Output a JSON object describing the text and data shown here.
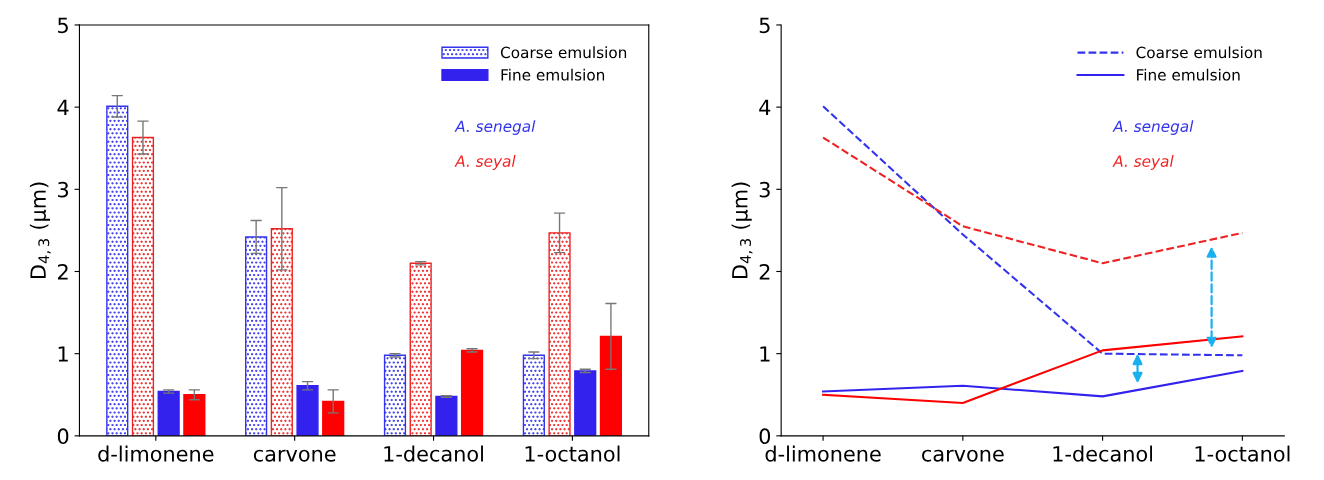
{
  "chart_data": [
    {
      "type": "bar",
      "categories": [
        "d-limonene",
        "carvone",
        "1-decanol",
        "1-octanol"
      ],
      "ylabel": "D$_{4,3}$ (µm)",
      "ylim": [
        0,
        5
      ],
      "yticks": [
        0,
        1,
        2,
        3,
        4,
        5
      ],
      "grid": false,
      "legend": "top right",
      "annotations": [
        "A. senegal",
        "A. seyal"
      ],
      "series": [
        {
          "name": "Coarse emulsion",
          "color": "#3333ee",
          "line_style": "dotted",
          "values": [
            4.01,
            2.42,
            0.98,
            0.98
          ],
          "errors": [
            0.13,
            0.2,
            0.02,
            0.04
          ]
        },
        {
          "color": "#ee2222",
          "line_style": "dotted",
          "values": [
            3.63,
            2.52,
            2.1,
            2.47
          ],
          "errors": [
            0.2,
            0.5,
            0.02,
            0.24
          ]
        },
        {
          "name": "Fine emulsion",
          "color": "#3322ee",
          "values": [
            0.54,
            0.61,
            0.48,
            0.79
          ],
          "errors": [
            0.02,
            0.05,
            0.01,
            0.02
          ]
        },
        {
          "color": "#ff0000",
          "values": [
            0.5,
            0.42,
            1.04,
            1.21
          ],
          "errors": [
            0.06,
            0.14,
            0.02,
            0.4
          ]
        }
      ]
    },
    {
      "type": "line",
      "categories": [
        "d-limonene",
        "carvone",
        "1-decanol",
        "1-octanol"
      ],
      "ylabel": "D$_{4,3}$ (µm)",
      "ylim": [
        0,
        5
      ],
      "yticks": [
        0,
        1,
        2,
        3,
        4,
        5
      ],
      "grid": false,
      "legend": "top right",
      "marker": "none",
      "annotations": [
        "A. senegal",
        "A. seyal"
      ],
      "series": [
        {
          "name": "Coarse emulsion",
          "color": "#3333ee",
          "line_style": "dashed",
          "values": [
            4.01,
            2.45,
            1.0,
            0.98
          ]
        },
        {
          "color": "#ee2222",
          "line_style": "dashed",
          "values": [
            3.63,
            2.55,
            2.1,
            2.47
          ]
        },
        {
          "name": "Fine emulsion",
          "color": "#3322ee",
          "line_style": "solid",
          "values": [
            0.54,
            0.61,
            0.48,
            0.79
          ]
        },
        {
          "color": "#ff0000",
          "line_style": "solid",
          "values": [
            0.5,
            0.4,
            1.04,
            1.21
          ]
        }
      ]
    }
  ]
}
